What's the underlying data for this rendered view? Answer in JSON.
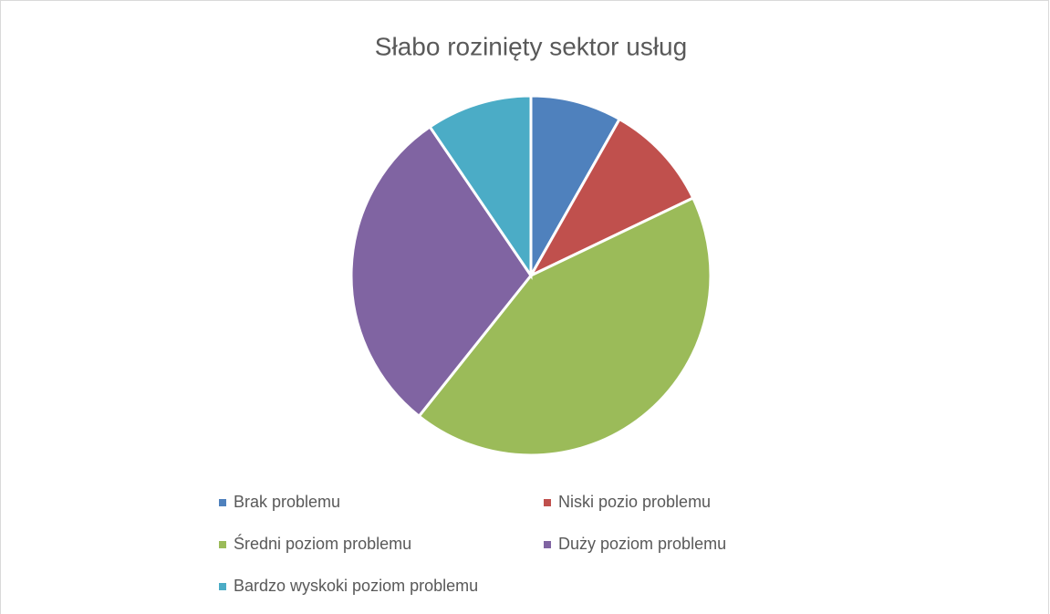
{
  "chart_data": {
    "type": "pie",
    "title": "Słabo rozinięty sektor usług",
    "categories": [
      "Brak problemu",
      "Niski pozio problemu",
      "Średni poziom problemu",
      "Duży poziom problemu",
      "Bardzo wyskoki poziom problemu"
    ],
    "values": [
      8.2,
      9.7,
      42.8,
      29.8,
      9.5
    ],
    "colors": [
      "#4f81bd",
      "#c0504d",
      "#9bbb59",
      "#8064a2",
      "#4bacc6"
    ],
    "legend": "bottom"
  }
}
